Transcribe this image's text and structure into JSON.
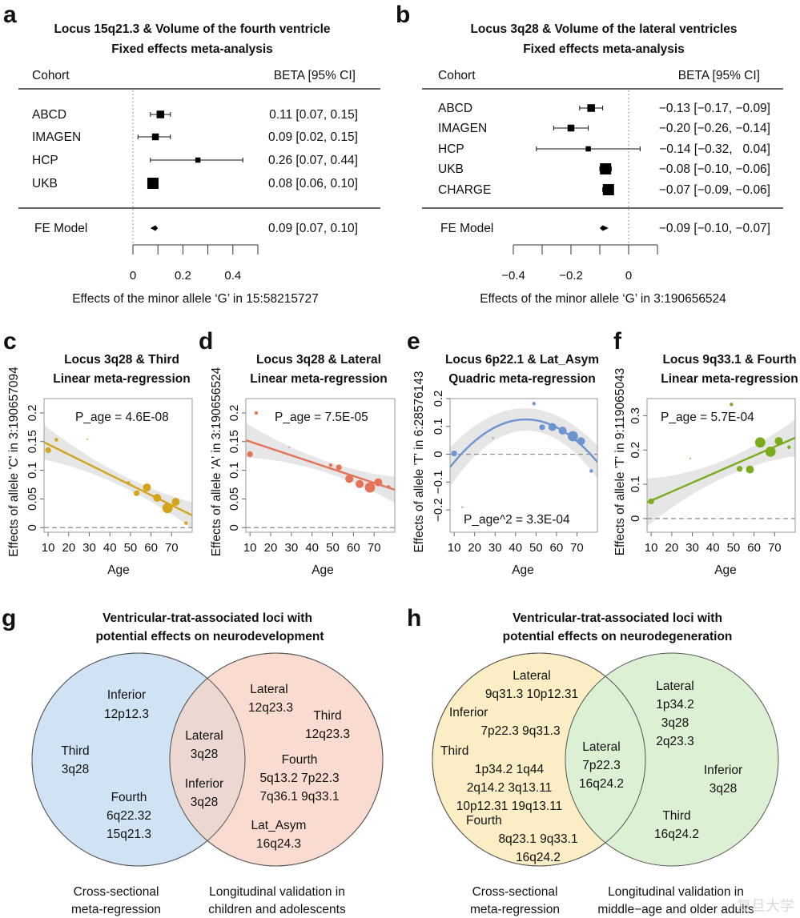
{
  "panels": {
    "a": {
      "label": "a",
      "title_line1": "Locus 15q21.3 &  Volume of the fourth ventricle",
      "title_line2": "Fixed effects meta-analysis",
      "col_cohort": "Cohort",
      "col_beta": "BETA [95% CI]",
      "xlabel": "Effects of the minor allele ‘G’ in 15:58215727"
    },
    "b": {
      "label": "b",
      "title_line1": "Locus 3q28 &  Volume of the lateral ventricles",
      "title_line2": "Fixed effects meta-analysis",
      "col_cohort": "Cohort",
      "col_beta": "BETA [95% CI]",
      "xlabel": "Effects of the minor allele ‘G’ in 3:190656524"
    },
    "c": {
      "label": "c",
      "title_line1": "Locus 3q28 & Third",
      "title_line2": "Linear meta-regression",
      "annotation": "P_age = 4.6E-08",
      "xlabel": "Age",
      "ylabel": "Effects of allele 'C' in 3:190657094"
    },
    "d": {
      "label": "d",
      "title_line1": "Locus 3q28 & Lateral",
      "title_line2": "Linear meta-regression",
      "annotation": "P_age = 7.5E-05",
      "xlabel": "Age",
      "ylabel": "Effects of allele 'A' in 3:190656524"
    },
    "e": {
      "label": "e",
      "title_line1": "Locus 6p22.1 & Lat_Asym",
      "title_line2": "Quadric meta-regression",
      "annotation": "P_age^2 = 3.3E-04",
      "xlabel": "Age",
      "ylabel": "Effects of allele 'T' in 6:28576143"
    },
    "f": {
      "label": "f",
      "title_line1": "Locus 9q33.1 & Fourth",
      "title_line2": "Linear meta-regression",
      "annotation": "P_age = 5.7E-04",
      "xlabel": "Age",
      "ylabel": "Effects of allele 'T' in 9:119065043"
    },
    "g": {
      "label": "g",
      "title_line1": "Ventricular-trat-associated loci with",
      "title_line2": "potential effects on neurodevelopment",
      "left_caption_1": "Cross-sectional",
      "left_caption_2": "meta-regression",
      "right_caption_1": "Longitudinal validation in",
      "right_caption_2": "children and adolescents",
      "left_color": "#cfe3f5",
      "right_color": "#f9dccf",
      "overlap_color": "#ecd8d0",
      "left_only": [
        [
          "Inferior",
          "12p12.3"
        ],
        [
          "Third",
          "3q28"
        ],
        [
          "Fourth",
          "6q22.32",
          "15q21.3"
        ]
      ],
      "overlap": [
        [
          "Lateral",
          "3q28"
        ],
        [
          "Inferior",
          "3q28"
        ]
      ],
      "right_only": [
        [
          "Lateral",
          "12q23.3"
        ],
        [
          "Third",
          "12q23.3"
        ],
        [
          "Fourth",
          "5q13.2 7p22.3",
          "7q36.1 9q33.1"
        ],
        [
          "Lat_Asym",
          "16q24.3"
        ]
      ]
    },
    "h": {
      "label": "h",
      "title_line1": "Ventricular-trat-associated loci with",
      "title_line2": "potential effects on neurodegeneration",
      "left_caption_1": "Cross-sectional",
      "left_caption_2": "meta-regression",
      "right_caption_1": "Longitudinal validation in",
      "right_caption_2": "middle−age and older adults",
      "left_color": "#fbeec4",
      "right_color": "#dcf0d4",
      "overlap_color": "#dcf0d4",
      "left_only": [
        [
          "Lateral",
          "9q31.3 10p12.31"
        ],
        [
          "Inferior",
          "7p22.3 9q31.3"
        ],
        [
          "Third",
          "1p34.2 1q44",
          "2q14.2 3q13.11",
          "10p12.31 19q13.11"
        ],
        [
          "Fourth",
          "8q23.1 9q33.1",
          "16q24.2"
        ]
      ],
      "overlap": [
        [
          "Lateral",
          "7p22.3",
          "16q24.2"
        ]
      ],
      "right_only": [
        [
          "Lateral",
          "1p34.2",
          "3q28",
          "2q23.3"
        ],
        [
          "Inferior",
          "3q28"
        ],
        [
          "Third",
          "16q24.2"
        ]
      ]
    }
  },
  "watermark": "复旦大学",
  "chart_data": [
    {
      "panel": "a",
      "type": "forest",
      "title": "Locus 15q21.3 &  Volume of the fourth ventricle — Fixed effects meta-analysis",
      "xlabel": "Effects of the minor allele ‘G’ in 15:58215727",
      "xlim": [
        0,
        0.5
      ],
      "xticks": [
        0,
        0.1,
        0.2,
        0.3,
        0.4,
        0.5
      ],
      "xtick_labels": [
        "0",
        "",
        "0.2",
        "",
        "0.4",
        ""
      ],
      "reference_line": 0,
      "studies": [
        {
          "cohort": "ABCD",
          "beta": 0.11,
          "lo": 0.07,
          "hi": 0.15,
          "label": "0.11 [0.07, 0.15]",
          "weight": 0.55
        },
        {
          "cohort": "IMAGEN",
          "beta": 0.09,
          "lo": 0.02,
          "hi": 0.15,
          "label": "0.09 [0.02, 0.15]",
          "weight": 0.45
        },
        {
          "cohort": "HCP",
          "beta": 0.26,
          "lo": 0.07,
          "hi": 0.44,
          "label": "0.26 [0.07, 0.44]",
          "weight": 0.25
        },
        {
          "cohort": "UKB",
          "beta": 0.08,
          "lo": 0.06,
          "hi": 0.1,
          "label": "0.08 [0.06, 0.10]",
          "weight": 1.0
        }
      ],
      "summary": {
        "name": "FE Model",
        "beta": 0.09,
        "lo": 0.07,
        "hi": 0.1,
        "label": "0.09 [0.07, 0.10]"
      }
    },
    {
      "panel": "b",
      "type": "forest",
      "title": "Locus 3q28 &  Volume of the lateral ventricles — Fixed effects meta-analysis",
      "xlabel": "Effects of the minor allele ‘G’ in 3:190656524",
      "xlim": [
        -0.4,
        0.1
      ],
      "xticks": [
        -0.4,
        -0.3,
        -0.2,
        -0.1,
        0,
        0.1
      ],
      "xtick_labels": [
        "−0.4",
        "",
        "−0.2",
        "",
        "0",
        ""
      ],
      "reference_line": 0,
      "studies": [
        {
          "cohort": "ABCD",
          "beta": -0.13,
          "lo": -0.17,
          "hi": -0.09,
          "label": "−0.13 [−0.17, −0.09]",
          "weight": 0.55
        },
        {
          "cohort": "IMAGEN",
          "beta": -0.2,
          "lo": -0.26,
          "hi": -0.14,
          "label": "−0.20 [−0.26, −0.14]",
          "weight": 0.45
        },
        {
          "cohort": "HCP",
          "beta": -0.14,
          "lo": -0.32,
          "hi": 0.04,
          "label": "−0.14 [−0.32,   0.04]",
          "weight": 0.25
        },
        {
          "cohort": "UKB",
          "beta": -0.08,
          "lo": -0.1,
          "hi": -0.06,
          "label": "−0.08 [−0.10, −0.06]",
          "weight": 1.0
        },
        {
          "cohort": "CHARGE",
          "beta": -0.07,
          "lo": -0.09,
          "hi": -0.06,
          "label": "−0.07 [−0.09, −0.06]",
          "weight": 1.0
        }
      ],
      "summary": {
        "name": "FE Model",
        "beta": -0.09,
        "lo": -0.1,
        "hi": -0.07,
        "label": "−0.09 [−0.10, −0.07]"
      }
    },
    {
      "panel": "c",
      "type": "scatter",
      "title": "Locus 3q28 & Third — Linear meta-regression",
      "xlabel": "Age",
      "ylabel": "Effects of allele 'C' in 3:190657094",
      "color": "#d4a41a",
      "xlim": [
        8,
        80
      ],
      "ylim": [
        -0.008,
        0.225
      ],
      "xticks": [
        10,
        20,
        30,
        40,
        50,
        60,
        70
      ],
      "yticks": [
        0,
        0.05,
        0.1,
        0.15,
        0.2
      ],
      "ytick_labels": [
        "0",
        "0.05",
        "0.1",
        "0.15",
        "0.2"
      ],
      "points": [
        {
          "x": 10,
          "y": 0.135,
          "size": 2
        },
        {
          "x": 14,
          "y": 0.153,
          "size": 1
        },
        {
          "x": 29,
          "y": 0.154,
          "size": 0.3
        },
        {
          "x": 49,
          "y": 0.078,
          "size": 1
        },
        {
          "x": 53,
          "y": 0.06,
          "size": 2
        },
        {
          "x": 58,
          "y": 0.07,
          "size": 3
        },
        {
          "x": 63,
          "y": 0.052,
          "size": 3
        },
        {
          "x": 68,
          "y": 0.034,
          "size": 4
        },
        {
          "x": 72,
          "y": 0.045,
          "size": 3
        },
        {
          "x": 77,
          "y": 0.008,
          "size": 1
        }
      ],
      "fit": {
        "type": "linear",
        "intercept": 0.163,
        "slope": -0.00177
      },
      "band": {
        "half_width_at_ends": 0.03,
        "half_width_center": 0.01
      },
      "annotation": "P_age = 4.6E-08",
      "reference_line": 0
    },
    {
      "panel": "d",
      "type": "scatter",
      "title": "Locus 3q28 & Lateral — Linear meta-regression",
      "xlabel": "Age",
      "ylabel": "Effects of allele 'A' in 3:190656524",
      "color": "#e4735a",
      "xlim": [
        8,
        80
      ],
      "ylim": [
        -0.008,
        0.225
      ],
      "xticks": [
        10,
        20,
        30,
        40,
        50,
        60,
        70
      ],
      "yticks": [
        0,
        0.05,
        0.1,
        0.15,
        0.2
      ],
      "ytick_labels": [
        "0",
        "0.05",
        "0.1",
        "0.15",
        "0.2"
      ],
      "points": [
        {
          "x": 10,
          "y": 0.128,
          "size": 2
        },
        {
          "x": 13,
          "y": 0.2,
          "size": 1
        },
        {
          "x": 29,
          "y": 0.14,
          "size": 0.3
        },
        {
          "x": 49,
          "y": 0.109,
          "size": 1
        },
        {
          "x": 53,
          "y": 0.105,
          "size": 2
        },
        {
          "x": 58,
          "y": 0.085,
          "size": 3
        },
        {
          "x": 63,
          "y": 0.076,
          "size": 3
        },
        {
          "x": 68,
          "y": 0.07,
          "size": 4
        },
        {
          "x": 72,
          "y": 0.079,
          "size": 3
        },
        {
          "x": 77,
          "y": 0.071,
          "size": 1
        }
      ],
      "fit": {
        "type": "linear",
        "intercept": 0.162,
        "slope": -0.0012
      },
      "band": {
        "half_width_at_ends": 0.03,
        "half_width_center": 0.01
      },
      "annotation": "P_age = 7.5E-05",
      "reference_line": 0
    },
    {
      "panel": "e",
      "type": "scatter",
      "title": "Locus 6p22.1 & Lat_Asym — Quadric meta-regression",
      "xlabel": "Age",
      "ylabel": "Effects of allele 'T' in 6:28576143",
      "color": "#6f93cf",
      "xlim": [
        8,
        80
      ],
      "ylim": [
        -0.28,
        0.2
      ],
      "xticks": [
        10,
        20,
        30,
        40,
        50,
        60,
        70
      ],
      "yticks": [
        -0.2,
        -0.1,
        0,
        0.1,
        0.2
      ],
      "ytick_labels": [
        "−0.2",
        "−0.1",
        "0",
        "0.1",
        "0.2"
      ],
      "points": [
        {
          "x": 10,
          "y": 0.003,
          "size": 2
        },
        {
          "x": 14,
          "y": -0.19,
          "size": 0.4
        },
        {
          "x": 29,
          "y": 0.058,
          "size": 0.4
        },
        {
          "x": 49,
          "y": 0.182,
          "size": 1
        },
        {
          "x": 53,
          "y": 0.097,
          "size": 2
        },
        {
          "x": 58,
          "y": 0.098,
          "size": 3
        },
        {
          "x": 63,
          "y": 0.085,
          "size": 3
        },
        {
          "x": 68,
          "y": 0.065,
          "size": 4
        },
        {
          "x": 72,
          "y": 0.047,
          "size": 3
        },
        {
          "x": 77,
          "y": -0.06,
          "size": 1
        }
      ],
      "fit": {
        "type": "quadratic",
        "vertex_x": 45,
        "vertex_y": 0.125,
        "a": -0.000125
      },
      "band": {
        "half_width_at_ends": 0.07,
        "half_width_center": 0.04
      },
      "annotation": "P_age^2 = 3.3E-04",
      "reference_line": 0
    },
    {
      "panel": "f",
      "type": "scatter",
      "title": "Locus 9q33.1 & Fourth — Linear meta-regression",
      "xlabel": "Age",
      "ylabel": "Effects of allele 'T' in 9:119065043",
      "color": "#7aac1e",
      "xlim": [
        8,
        80
      ],
      "ylim": [
        -0.04,
        0.35
      ],
      "xticks": [
        10,
        20,
        30,
        40,
        50,
        60,
        70
      ],
      "yticks": [
        0,
        0.1,
        0.2,
        0.3
      ],
      "ytick_labels": [
        "0",
        "0.1",
        "0.2",
        "0.3"
      ],
      "points": [
        {
          "x": 10,
          "y": 0.05,
          "size": 2
        },
        {
          "x": 29,
          "y": 0.175,
          "size": 0.3
        },
        {
          "x": 49,
          "y": 0.333,
          "size": 1
        },
        {
          "x": 53,
          "y": 0.145,
          "size": 2
        },
        {
          "x": 58,
          "y": 0.143,
          "size": 3
        },
        {
          "x": 63,
          "y": 0.222,
          "size": 4
        },
        {
          "x": 68,
          "y": 0.195,
          "size": 4
        },
        {
          "x": 72,
          "y": 0.226,
          "size": 3
        },
        {
          "x": 77,
          "y": 0.208,
          "size": 1
        }
      ],
      "fit": {
        "type": "linear",
        "intercept": 0.026,
        "slope": 0.00262
      },
      "band": {
        "half_width_at_ends": 0.07,
        "half_width_center": 0.025
      },
      "annotation": "P_age = 5.7E-04",
      "reference_line": 0
    }
  ]
}
